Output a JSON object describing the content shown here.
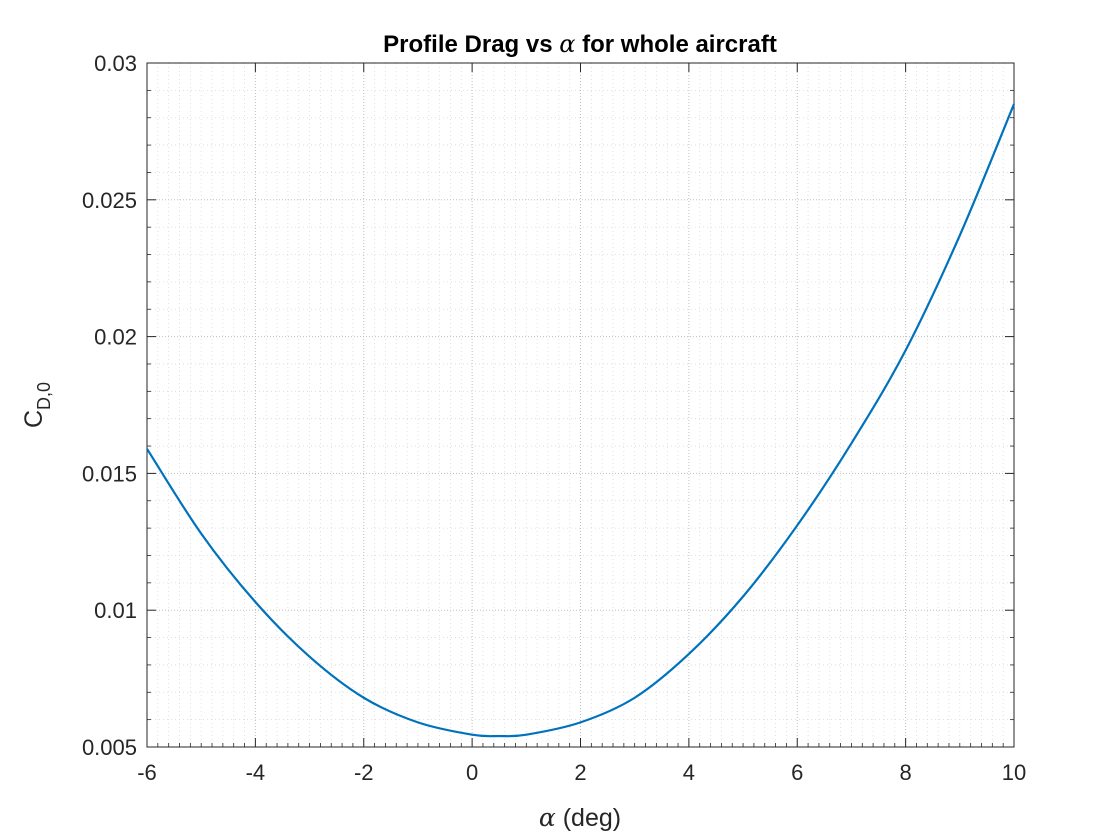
{
  "chart_data": {
    "type": "line",
    "title": {
      "prefix": "Profile Drag vs ",
      "symbol": "α",
      "suffix": " for whole aircraft"
    },
    "xlabel": {
      "symbol": "α",
      "text": " (deg)"
    },
    "ylabel": {
      "main": "C",
      "subscript": "D,0"
    },
    "xlim": [
      -6,
      10
    ],
    "ylim": [
      0.005,
      0.03
    ],
    "xticks": [
      -6,
      -4,
      -2,
      0,
      2,
      4,
      6,
      8,
      10
    ],
    "xtick_labels": [
      "-6",
      "-4",
      "-2",
      "0",
      "2",
      "4",
      "6",
      "8",
      "10"
    ],
    "yticks": [
      0.005,
      0.01,
      0.015,
      0.02,
      0.025,
      0.03
    ],
    "ytick_labels": [
      "0.005",
      "0.01",
      "0.015",
      "0.02",
      "0.025",
      "0.03"
    ],
    "grid": true,
    "minor_grid": true,
    "line_color": "#0072BD",
    "series": [
      {
        "x": [
          -6,
          -5,
          -4,
          -3,
          -2,
          -1,
          0,
          0.5,
          1,
          2,
          3,
          4,
          5,
          6,
          7,
          8,
          9,
          10
        ],
        "y": [
          0.0159,
          0.0128,
          0.0103,
          0.0083,
          0.0068,
          0.0059,
          0.00545,
          0.0054,
          0.00545,
          0.0059,
          0.0068,
          0.0084,
          0.0105,
          0.0131,
          0.0161,
          0.0195,
          0.0237,
          0.0285
        ]
      }
    ]
  }
}
